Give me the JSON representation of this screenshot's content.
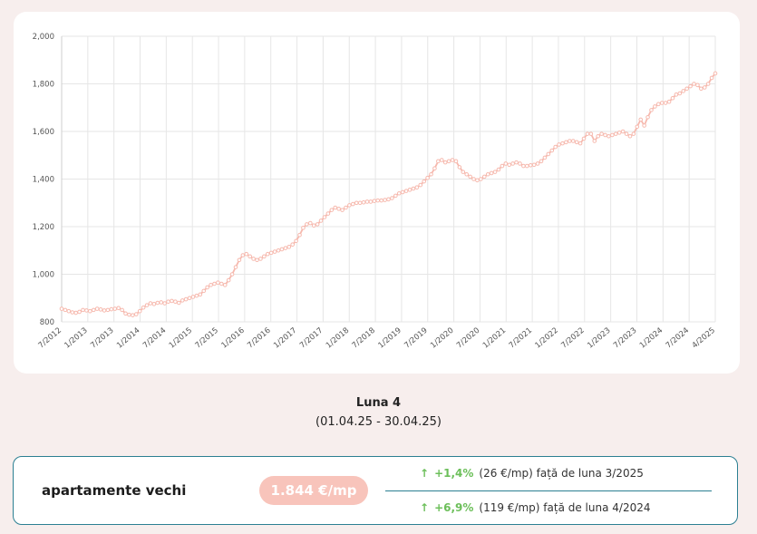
{
  "chart_data": {
    "type": "line",
    "x_tick_labels": [
      "7/2012",
      "1/2013",
      "7/2013",
      "1/2014",
      "7/2014",
      "1/2015",
      "7/2015",
      "1/2016",
      "7/2016",
      "1/2017",
      "7/2017",
      "1/2018",
      "7/2018",
      "1/2019",
      "7/2019",
      "1/2020",
      "7/2020",
      "1/2021",
      "7/2021",
      "1/2022",
      "7/2022",
      "1/2023",
      "7/2023",
      "1/2024",
      "7/2024",
      "4/2025"
    ],
    "y_tick_labels": [
      "800",
      "1,000",
      "1,200",
      "1,400",
      "1,600",
      "1,800",
      "2,000"
    ],
    "ylim": [
      800,
      2000
    ],
    "grid": true,
    "series": [
      {
        "color": "#f6b9ae",
        "values": [
          855,
          850,
          845,
          840,
          838,
          842,
          850,
          848,
          845,
          850,
          855,
          852,
          848,
          850,
          853,
          855,
          858,
          850,
          835,
          830,
          828,
          832,
          845,
          860,
          870,
          878,
          875,
          880,
          882,
          878,
          885,
          888,
          885,
          880,
          890,
          895,
          900,
          905,
          910,
          915,
          930,
          945,
          955,
          960,
          965,
          960,
          955,
          975,
          1000,
          1030,
          1060,
          1080,
          1085,
          1075,
          1065,
          1060,
          1065,
          1075,
          1085,
          1090,
          1095,
          1100,
          1105,
          1110,
          1115,
          1125,
          1140,
          1165,
          1195,
          1210,
          1215,
          1205,
          1210,
          1225,
          1240,
          1255,
          1270,
          1280,
          1275,
          1270,
          1280,
          1290,
          1295,
          1300,
          1300,
          1302,
          1305,
          1305,
          1308,
          1310,
          1310,
          1312,
          1315,
          1320,
          1330,
          1340,
          1345,
          1350,
          1355,
          1360,
          1365,
          1375,
          1390,
          1405,
          1420,
          1445,
          1475,
          1480,
          1470,
          1475,
          1480,
          1475,
          1450,
          1430,
          1420,
          1410,
          1400,
          1395,
          1400,
          1410,
          1420,
          1425,
          1430,
          1440,
          1455,
          1465,
          1460,
          1465,
          1470,
          1465,
          1455,
          1455,
          1458,
          1460,
          1465,
          1475,
          1490,
          1505,
          1520,
          1535,
          1545,
          1550,
          1555,
          1560,
          1560,
          1555,
          1550,
          1570,
          1590,
          1590,
          1560,
          1580,
          1590,
          1585,
          1580,
          1585,
          1590,
          1595,
          1600,
          1590,
          1580,
          1590,
          1620,
          1650,
          1625,
          1660,
          1690,
          1705,
          1715,
          1720,
          1720,
          1725,
          1740,
          1755,
          1760,
          1770,
          1780,
          1790,
          1800,
          1795,
          1780,
          1785,
          1800,
          1825,
          1844
        ]
      }
    ]
  },
  "period": {
    "month_label": "Luna 4",
    "range": "(01.04.25 - 30.04.25)"
  },
  "summary": {
    "label": "apartamente vechi",
    "price": "1.844 €/mp",
    "change_month": {
      "arrow": "↑",
      "pct": "+1,4%",
      "text": "(26 €/mp) față de luna 3/2025"
    },
    "change_year": {
      "arrow": "↑",
      "pct": "+6,9%",
      "text": "(119 €/mp) față de luna 4/2024"
    }
  },
  "colors": {
    "line": "#f6b9ae",
    "accent_green": "#6cbf5a",
    "border_teal": "#2b7f92",
    "price_pill": "#f8c4bb"
  }
}
